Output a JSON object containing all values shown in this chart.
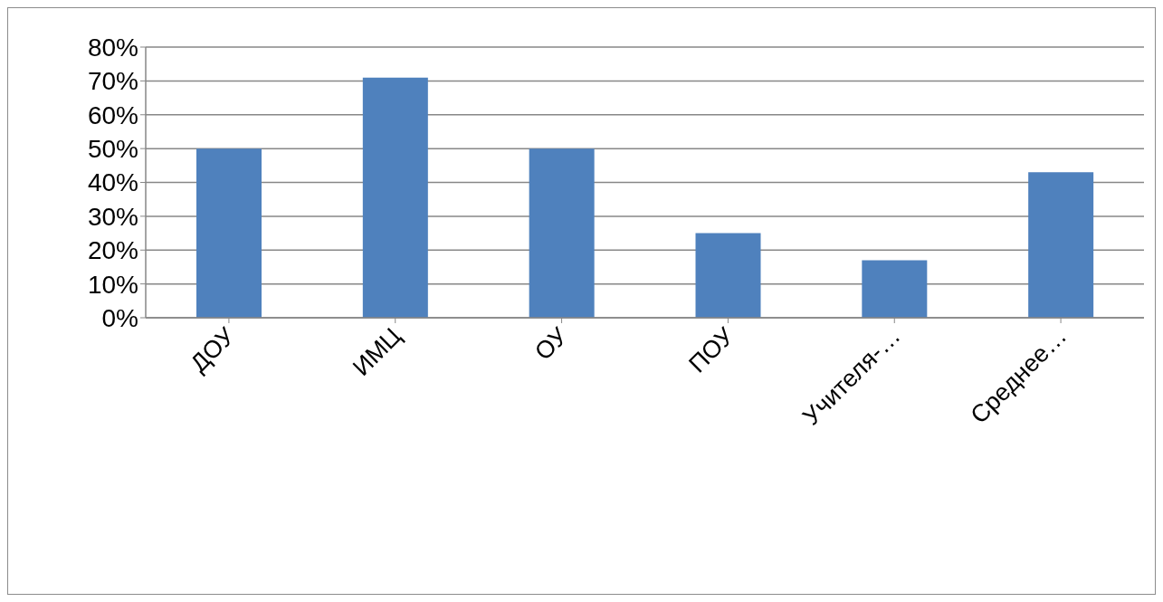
{
  "chart_data": {
    "type": "bar",
    "categories": [
      "ДОУ",
      "ИМЦ",
      "ОУ",
      "ПОУ",
      "Учителя-…",
      "Среднее…"
    ],
    "values": [
      50,
      71,
      50,
      25,
      17,
      43
    ],
    "color": "#4f81bd",
    "ylim": [
      0,
      80
    ],
    "yticks": [
      {
        "value": 0,
        "label": "0%"
      },
      {
        "value": 10,
        "label": "10%"
      },
      {
        "value": 20,
        "label": "20%"
      },
      {
        "value": 30,
        "label": "30%"
      },
      {
        "value": 40,
        "label": "40%"
      },
      {
        "value": 50,
        "label": "50%"
      },
      {
        "value": 60,
        "label": "60%"
      },
      {
        "value": 70,
        "label": "70%"
      },
      {
        "value": 80,
        "label": "80%"
      }
    ],
    "grid": "y",
    "legend": false
  }
}
